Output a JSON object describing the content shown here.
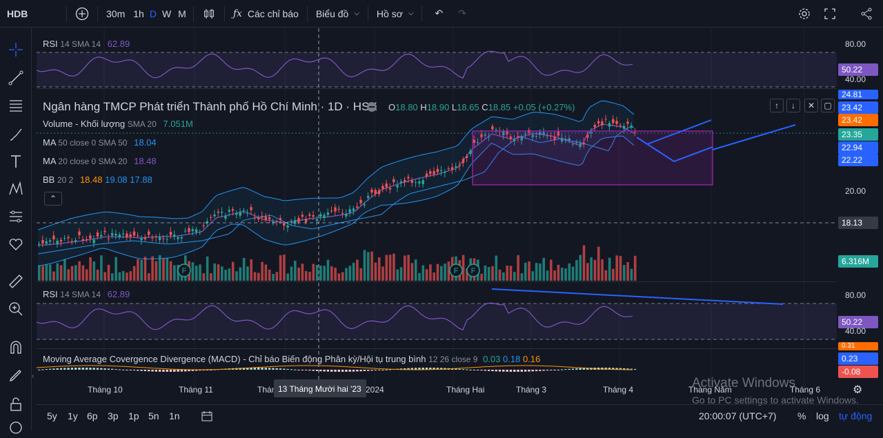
{
  "toolbar": {
    "symbol": "HDB",
    "tf_30m": "30m",
    "tf_1h": "1h",
    "tf_D": "D",
    "tf_W": "W",
    "tf_M": "M",
    "indicators": "Các chỉ báo",
    "charts": "Biểu đồ",
    "profile": "Hồ sơ"
  },
  "legend": {
    "rsi": {
      "name": "RSI",
      "params": "14 SMA 14",
      "value": "62.89"
    },
    "title": "Ngân hàng TMCP Phát triển Thành phố Hồ Chí Minh · 1D · HSX",
    "ohlc": {
      "o_label": "O",
      "o": "18.80",
      "h_label": "H",
      "h": "18.90",
      "l_label": "L",
      "l": "18.65",
      "c_label": "C",
      "c": "18.85",
      "change": "+0.05 (+0.27%)"
    },
    "volume": {
      "name": "Volume - Khối lượng",
      "params": "SMA 20",
      "value": "7.051M"
    },
    "ma50": {
      "name": "MA",
      "params": "50 close 0 SMA 50",
      "value": "18.04"
    },
    "ma20": {
      "name": "MA",
      "params": "20 close 0 SMA 20",
      "value": "18.48"
    },
    "bb": {
      "name": "BB",
      "params": "20 2",
      "v1": "18.48",
      "v2": "19.08",
      "v3": "17.88"
    },
    "rsi2": {
      "name": "RSI",
      "params": "14 SMA 14",
      "value": "62.89"
    },
    "macd": {
      "name": "Moving Average Covergence Divergence (MACD) - Chỉ báo Biến động Phân kỳ/Hội tụ trung bình",
      "params": "12 26 close 9",
      "v1": "0.03",
      "v2": "0.18",
      "v3": "0.16"
    }
  },
  "price_scale": {
    "rsi_80": "80.00",
    "rsi_val": "50.22",
    "rsi_40": "40.00",
    "p_2481": "24.81",
    "p_2342a": "23.42",
    "p_2342b": "23.42",
    "p_2335": "23.35",
    "p_2294": "22.94",
    "p_2222": "22.22",
    "p_20": "20.00",
    "p_1813": "18.13",
    "vol": "6.316M",
    "rsi2_80": "80.00",
    "rsi2_val": "50.22",
    "rsi2_40": "40.00",
    "macd_a": "0.31",
    "macd_b": "0.23",
    "macd_c": "-0.08"
  },
  "time_axis": {
    "t1": "Tháng 10",
    "t2": "Tháng 11",
    "t3": "Thán",
    "crosshair": "13 Tháng Mười hai '23",
    "t4": "2024",
    "t5": "Tháng Hai",
    "t6": "Tháng 3",
    "t7": "Tháng 4",
    "t8": "Tháng Năm",
    "t9": "Tháng 6"
  },
  "bottom": {
    "r5y": "5y",
    "r1y": "1y",
    "r6m": "6p",
    "r3m": "3p",
    "r1m": "1p",
    "r5d": "5n",
    "r1d": "1n",
    "clock": "20:00:07 (UTC+7)",
    "pct": "%",
    "log": "log",
    "auto": "tự động"
  },
  "watermark": {
    "line1": "Activate Windows",
    "line2": "Go to PC settings to activate Windows."
  },
  "earnings_marker": "F",
  "colors": {
    "up": "#26a69a",
    "down": "#ef5350",
    "rsi": "#7e57c2",
    "bb": "#2196f3",
    "blue_line": "#2962ff",
    "box": "#9c27b0"
  }
}
